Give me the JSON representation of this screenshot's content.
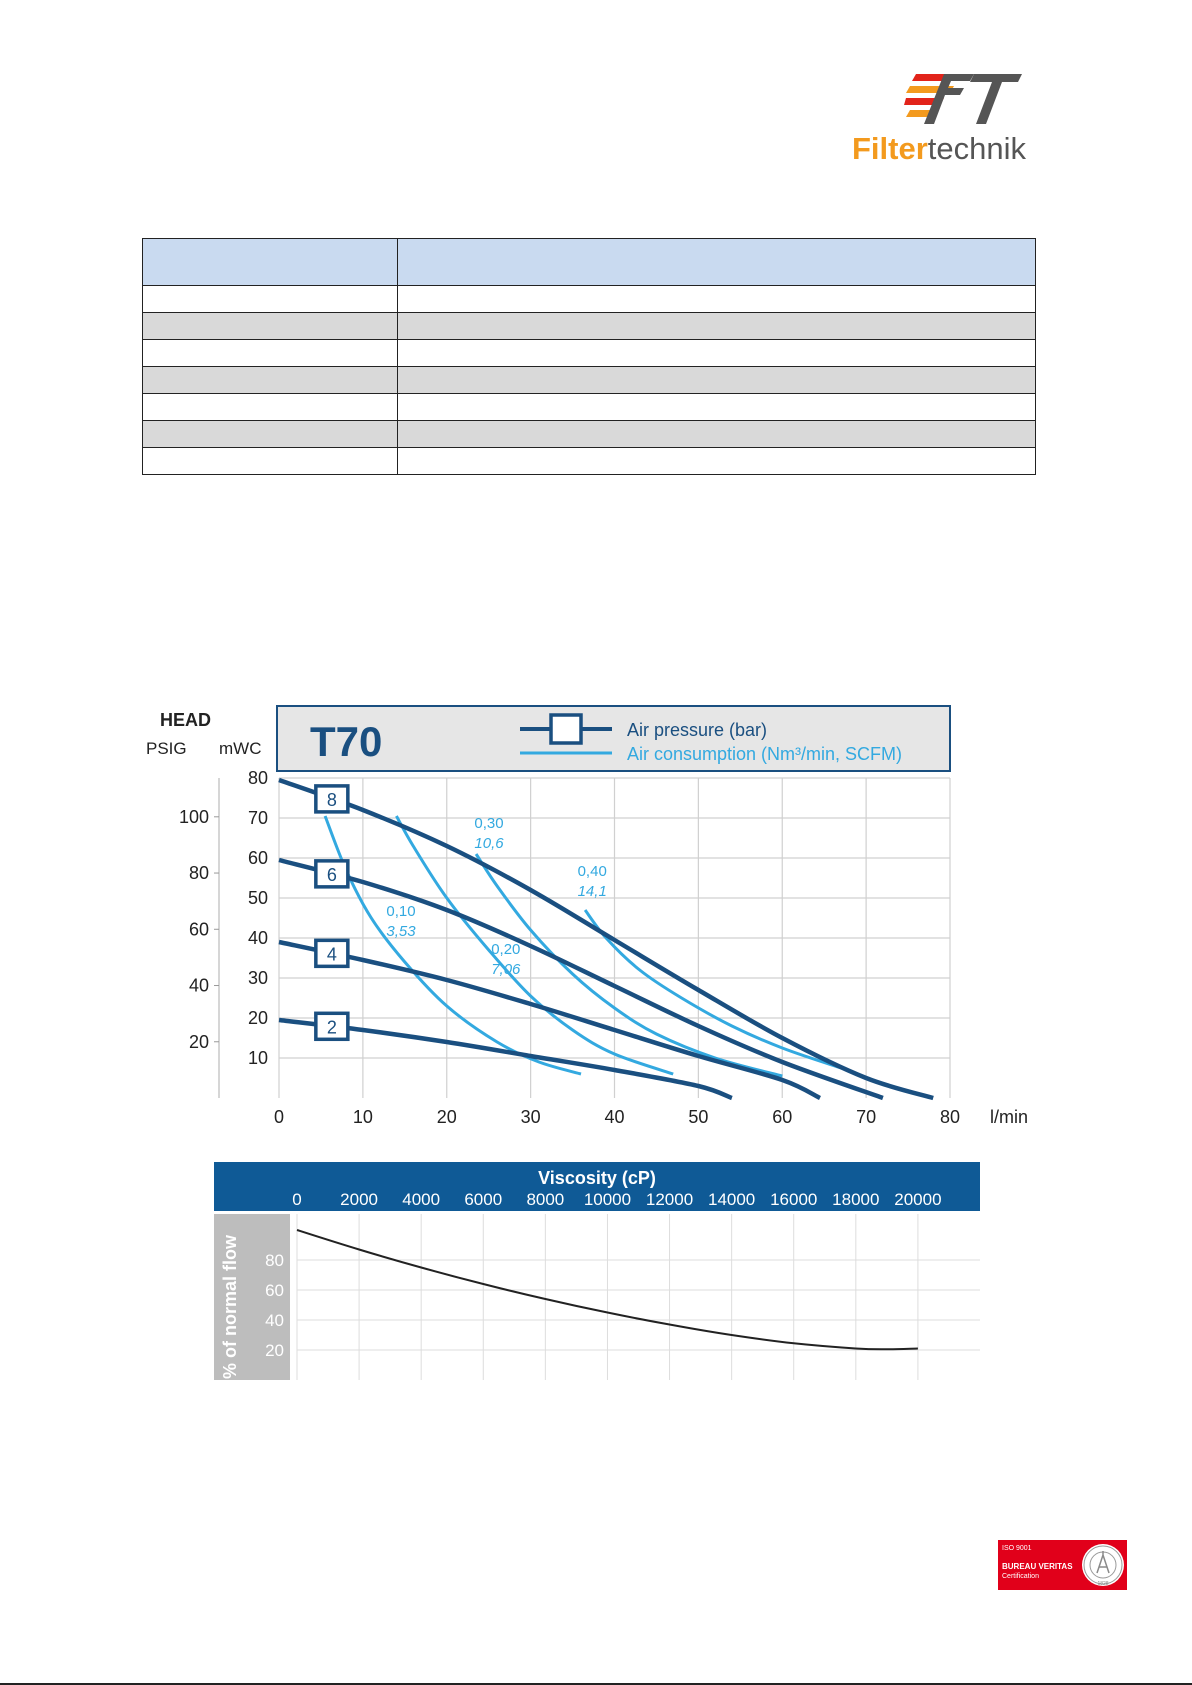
{
  "logo": {
    "brand_mark": "FT",
    "name_part1": "Filter",
    "name_part2": "technik",
    "colors": {
      "orange": "#f39a1e",
      "red": "#e2231a",
      "gray": "#555555"
    }
  },
  "spec_table": {
    "header_color": "#c9daf0",
    "stripe_color": "#d9d9d9",
    "rows": 8,
    "columns": 2
  },
  "chart_data": [
    {
      "type": "line",
      "title": "T70",
      "ylabel": "HEAD",
      "y_unit_left": "PSIG",
      "y_unit_right": "mWC",
      "xlabel": "l/min",
      "x_ticks": [
        "0",
        "10",
        "20",
        "30",
        "40",
        "50",
        "60",
        "70",
        "80"
      ],
      "y_ticks_mwc": [
        "10",
        "20",
        "30",
        "40",
        "50",
        "60",
        "70",
        "80"
      ],
      "y_ticks_psig": [
        "20",
        "40",
        "60",
        "80",
        "100"
      ],
      "xlim": [
        0,
        80
      ],
      "ylim": [
        0,
        80
      ],
      "grid": true,
      "legend": {
        "pressure_label": "Air pressure (bar)",
        "consumption_label": "Air consumption (Nm³/min, SCFM)"
      },
      "colors": {
        "pressure": "#1a4f80",
        "consumption": "#33a9e0",
        "frame": "#1a4f80",
        "legend_bg": "#e6e6e6"
      },
      "pressure_curves": [
        {
          "label": "8",
          "points": [
            [
              0,
              79.5
            ],
            [
              10,
              72
            ],
            [
              20,
              63
            ],
            [
              30,
              52
            ],
            [
              40,
              39.5
            ],
            [
              50,
              27
            ],
            [
              60,
              15
            ],
            [
              70,
              5
            ],
            [
              78,
              0
            ]
          ]
        },
        {
          "label": "6",
          "points": [
            [
              0,
              59.5
            ],
            [
              10,
              54
            ],
            [
              20,
              47
            ],
            [
              30,
              38
            ],
            [
              40,
              28
            ],
            [
              50,
              18
            ],
            [
              60,
              9
            ],
            [
              72,
              0
            ]
          ]
        },
        {
          "label": "4",
          "points": [
            [
              0,
              39
            ],
            [
              10,
              34.5
            ],
            [
              20,
              29.5
            ],
            [
              30,
              23.5
            ],
            [
              40,
              17
            ],
            [
              50,
              10.5
            ],
            [
              60,
              4.5
            ],
            [
              64.5,
              0
            ]
          ]
        },
        {
          "label": "2",
          "points": [
            [
              0,
              19.5
            ],
            [
              10,
              17
            ],
            [
              20,
              14
            ],
            [
              30,
              10.5
            ],
            [
              40,
              7
            ],
            [
              50,
              3
            ],
            [
              54,
              0
            ]
          ]
        }
      ],
      "consumption_curves": [
        {
          "label_metric": "0,10",
          "label_imperial": "3,53",
          "points": [
            [
              5.5,
              70.5
            ],
            [
              8,
              57
            ],
            [
              11,
              45
            ],
            [
              15,
              34
            ],
            [
              20,
              23
            ],
            [
              26,
              14
            ],
            [
              31,
              9
            ],
            [
              36,
              6
            ]
          ]
        },
        {
          "label_metric": "0,20",
          "label_imperial": "7,06",
          "points": [
            [
              14,
              70.5
            ],
            [
              16,
              63
            ],
            [
              20,
              50
            ],
            [
              25,
              37
            ],
            [
              30,
              25.5
            ],
            [
              35,
              17
            ],
            [
              40,
              11
            ],
            [
              47,
              6
            ]
          ]
        },
        {
          "label_metric": "0,30",
          "label_imperial": "10,6",
          "points": [
            [
              23.5,
              61
            ],
            [
              26,
              53
            ],
            [
              30,
              42
            ],
            [
              35,
              31
            ],
            [
              40,
              22.5
            ],
            [
              45,
              16
            ],
            [
              52,
              10
            ],
            [
              60,
              5.5
            ]
          ]
        },
        {
          "label_metric": "0,40",
          "label_imperial": "14,1",
          "points": [
            [
              36.5,
              47
            ],
            [
              39,
              40
            ],
            [
              43,
              32
            ],
            [
              48,
              25
            ],
            [
              54,
              18
            ],
            [
              60,
              12.5
            ],
            [
              67,
              7.5
            ]
          ]
        }
      ]
    },
    {
      "type": "line",
      "title": "Viscosity (cP)",
      "ylabel": "% of normal flow",
      "x_ticks": [
        "0",
        "2000",
        "4000",
        "6000",
        "8000",
        "10000",
        "12000",
        "14000",
        "16000",
        "18000",
        "20000"
      ],
      "y_ticks": [
        "20",
        "40",
        "60",
        "80"
      ],
      "xlim": [
        0,
        22000
      ],
      "ylim": [
        0,
        100
      ],
      "grid": true,
      "colors": {
        "header": "#0f5a96",
        "axis_band": "#bdbdbd",
        "line": "#222222"
      },
      "series": [
        {
          "x": [
            0,
            2000,
            4000,
            6000,
            8000,
            10000,
            12000,
            14000,
            16000,
            18000,
            19000,
            20000
          ],
          "y": [
            100,
            87,
            75,
            64,
            54,
            45,
            37,
            30,
            24.5,
            21,
            20.5,
            21
          ]
        }
      ]
    }
  ],
  "certification": {
    "line1": "ISO 9001",
    "line2": "BUREAU VERITAS",
    "line3": "Certification",
    "emblem_year": "1828",
    "color": "#e1001a"
  }
}
